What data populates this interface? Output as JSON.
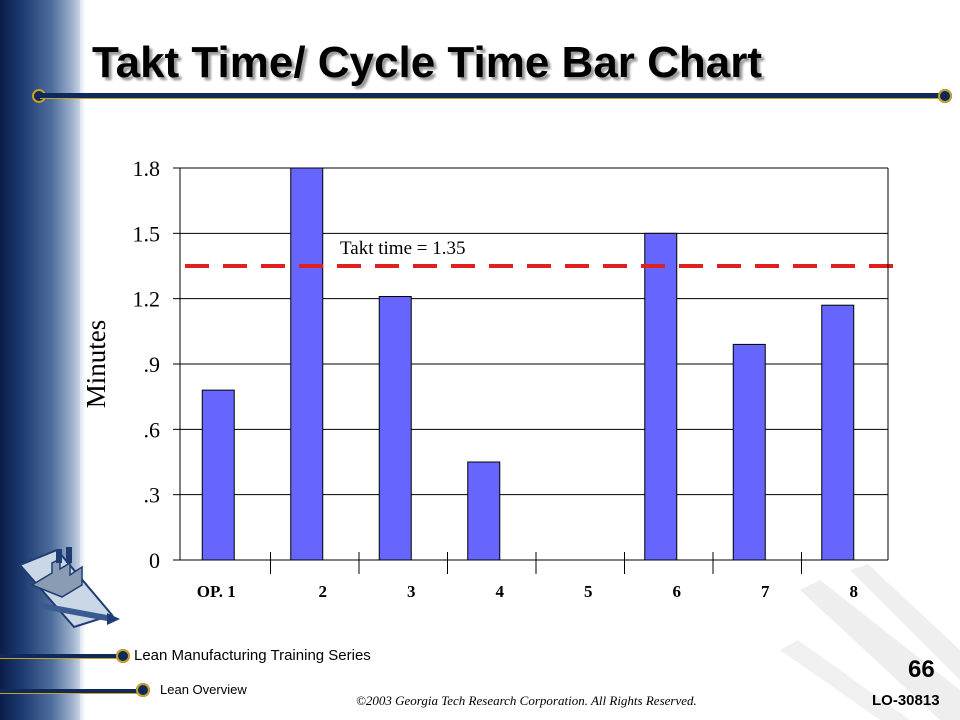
{
  "slide": {
    "title": "Takt Time/ Cycle Time Bar Chart",
    "footer_series": "Lean Manufacturing Training Series",
    "footer_module": "Lean Overview",
    "copyright": "©2003 Georgia Tech Research Corporation.  All Rights Reserved.",
    "page_number": "66",
    "doc_code": "LO-30813"
  },
  "colors": {
    "bar": "#6666ff",
    "takt_line": "#e02020",
    "nav_blue": "#0f2a5a",
    "gold": "#c9a227"
  },
  "icons": [
    "factory-icon"
  ],
  "chart_data": {
    "type": "bar",
    "title": "",
    "ylabel": "Minutes",
    "xlabel": "",
    "categories": [
      "OP.  1",
      "2",
      "3",
      "4",
      "5",
      "6",
      "7",
      "8"
    ],
    "values": [
      0.78,
      1.8,
      1.21,
      0.45,
      0,
      1.5,
      0.99,
      1.17
    ],
    "ylim": [
      0,
      1.8
    ],
    "yticks": [
      0,
      0.3,
      0.6,
      0.9,
      1.2,
      1.5,
      1.8
    ],
    "ytick_labels": [
      "0",
      ".3",
      ".6",
      ".9",
      "1.2",
      "1.5",
      "1.8"
    ],
    "grid": true,
    "reference_line": {
      "value": 1.35,
      "label": "Takt time = 1.35",
      "style": "dashed"
    }
  }
}
